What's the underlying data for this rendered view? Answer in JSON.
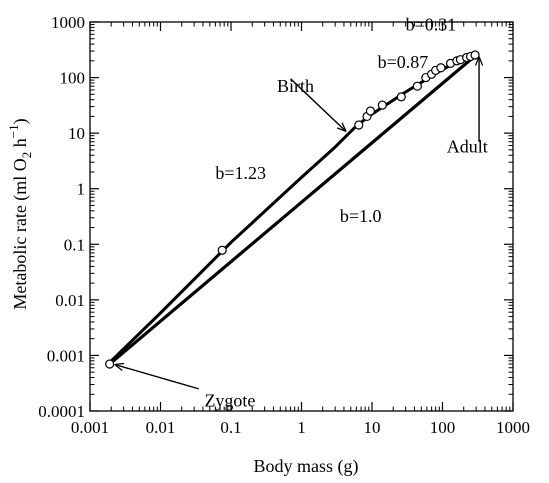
{
  "chart_data": {
    "type": "scatter",
    "xlabel": "Body mass (g)",
    "ylabel_parts": {
      "base": "Metabolic rate (ml O",
      "sub": "2",
      "mid": " h",
      "sup": "−1",
      "end": ")"
    },
    "xscale": "log",
    "yscale": "log",
    "xlim": [
      0.001,
      1000
    ],
    "ylim": [
      0.0001,
      1000
    ],
    "xticks": [
      {
        "value": 0.001,
        "label": "0.001"
      },
      {
        "value": 0.01,
        "label": "0.01"
      },
      {
        "value": 0.1,
        "label": "0.1"
      },
      {
        "value": 1,
        "label": "1"
      },
      {
        "value": 10,
        "label": "10"
      },
      {
        "value": 100,
        "label": "100"
      },
      {
        "value": 1000,
        "label": "1000"
      }
    ],
    "yticks": [
      {
        "value": 0.0001,
        "label": "0.0001"
      },
      {
        "value": 0.001,
        "label": "0.001"
      },
      {
        "value": 0.01,
        "label": "0.01"
      },
      {
        "value": 0.1,
        "label": "0.1"
      },
      {
        "value": 1,
        "label": "1"
      },
      {
        "value": 10,
        "label": "10"
      },
      {
        "value": 100,
        "label": "100"
      },
      {
        "value": 1000,
        "label": "1000"
      }
    ],
    "grid": false,
    "legend": "none",
    "series": [
      {
        "kind": "line",
        "points": [
          [
            0.0019,
            0.00075
          ],
          [
            0.01,
            0.0058
          ],
          [
            0.1,
            0.108
          ],
          [
            1,
            1.6
          ],
          [
            3,
            5.6
          ],
          [
            6,
            13.5
          ],
          [
            10,
            22
          ],
          [
            30,
            55
          ],
          [
            100,
            140
          ],
          [
            200,
            225
          ],
          [
            300,
            255
          ]
        ]
      },
      {
        "kind": "line",
        "points": [
          [
            0.0019,
            0.0007
          ],
          [
            300,
            255
          ]
        ]
      },
      {
        "kind": "scatter",
        "points": [
          [
            0.0019,
            0.0007
          ],
          [
            0.075,
            0.078
          ],
          [
            6.5,
            14
          ],
          [
            8.5,
            20
          ],
          [
            9.5,
            25
          ],
          [
            14,
            32
          ],
          [
            26,
            45
          ],
          [
            44,
            70
          ],
          [
            58,
            100
          ],
          [
            70,
            115
          ],
          [
            80,
            135
          ],
          [
            95,
            150
          ],
          [
            130,
            180
          ],
          [
            160,
            200
          ],
          [
            180,
            210
          ],
          [
            220,
            230
          ],
          [
            250,
            240
          ],
          [
            290,
            255
          ]
        ]
      }
    ],
    "annotations": [
      {
        "text": "b=0.31",
        "x": 30,
        "y": 700
      },
      {
        "text": "b=0.87",
        "x": 12,
        "y": 150
      },
      {
        "text": "Birth",
        "x": 0.45,
        "y": 55
      },
      {
        "text": "b=1.23",
        "x": 0.06,
        "y": 1.5
      },
      {
        "text": "b=1.0",
        "x": 3.5,
        "y": 0.25
      },
      {
        "text": "Adult",
        "x": 115,
        "y": 4.5
      },
      {
        "text": "Zygote",
        "x": 0.042,
        "y": 0.00012
      }
    ],
    "arrows": [
      {
        "label": "Birth",
        "from": [
          0.7,
          95
        ],
        "to": [
          4.2,
          11
        ]
      },
      {
        "label": "Adult",
        "from": [
          330,
          7
        ],
        "to": [
          330,
          230
        ]
      },
      {
        "label": "Zygote",
        "from": [
          0.035,
          0.00025
        ],
        "to": [
          0.0023,
          0.00068
        ]
      }
    ]
  }
}
